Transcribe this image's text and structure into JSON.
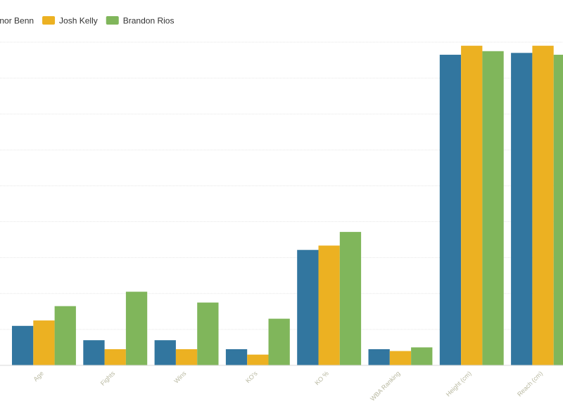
{
  "chart_data": {
    "type": "bar",
    "categories": [
      "Age",
      "Fights",
      "Wins",
      "KO's",
      "KO %",
      "WBA Ranking",
      "Height (cm)",
      "Reach (cm)"
    ],
    "series": [
      {
        "name": "Conor Benn",
        "color": "#32769f",
        "values": [
          22,
          14,
          14,
          9,
          64.3,
          9,
          173,
          174
        ]
      },
      {
        "name": "Josh Kelly",
        "color": "#ecb122",
        "values": [
          25,
          9,
          9,
          6,
          66.7,
          8,
          178,
          178
        ]
      },
      {
        "name": "Brandon Rios",
        "color": "#80b65b",
        "values": [
          33,
          41,
          35,
          26,
          74.3,
          10,
          175,
          173
        ]
      }
    ],
    "ylim": [
      0,
      180
    ],
    "grid": true,
    "legend_position": "top-left",
    "title": "",
    "xlabel": "",
    "ylabel": ""
  }
}
